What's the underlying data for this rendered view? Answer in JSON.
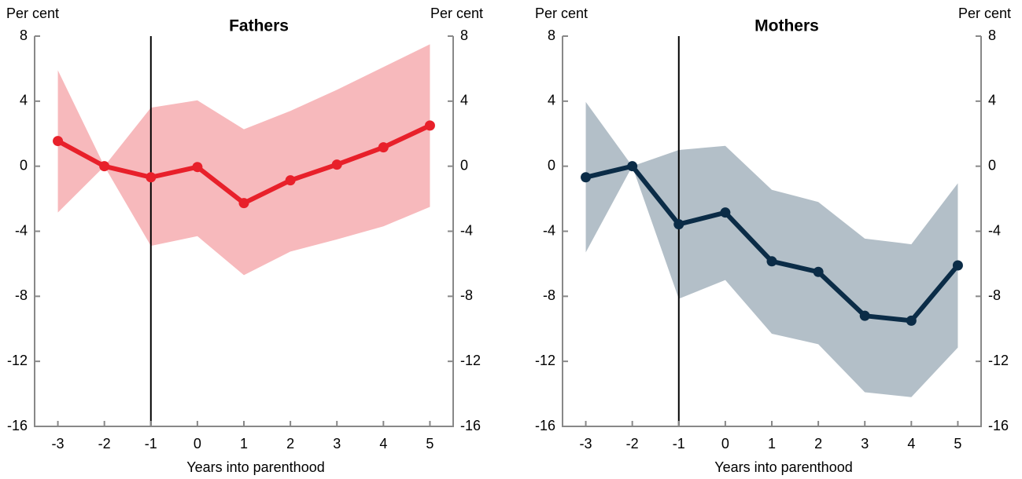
{
  "chart_data": [
    {
      "type": "line",
      "title": "Fathers",
      "ylabel": "Per cent",
      "y2label": "Per cent",
      "xlabel": "Years into parenthood",
      "x": [
        -3,
        -2,
        -1,
        0,
        1,
        2,
        3,
        4,
        5
      ],
      "xlim": [
        -3.5,
        5.5
      ],
      "vline": -1,
      "ylim": [
        -16,
        8
      ],
      "yticks": [
        -16,
        -12,
        -8,
        -4,
        0,
        4,
        8
      ],
      "y2lim": [
        -16,
        8
      ],
      "y2ticks": [
        -16,
        -12,
        -8,
        -4,
        0,
        4,
        8
      ],
      "series": [
        {
          "color": "#e8202a",
          "band_color": "#f7b9bc",
          "values": [
            1.55,
            0,
            -0.68,
            -0.05,
            -2.27,
            -0.87,
            0.1,
            1.16,
            2.5
          ],
          "upper": [
            5.9,
            0,
            3.6,
            4.05,
            2.27,
            3.4,
            4.7,
            6.1,
            7.5
          ],
          "lower": [
            -2.85,
            0,
            -4.9,
            -4.3,
            -6.7,
            -5.25,
            -4.5,
            -3.7,
            -2.5
          ]
        }
      ]
    },
    {
      "type": "line",
      "title": "Mothers",
      "ylabel": "Per cent",
      "y2label": "Per cent",
      "xlabel": "Years into parenthood",
      "x": [
        -3,
        -2,
        -1,
        0,
        1,
        2,
        3,
        4,
        5
      ],
      "xlim": [
        -3.5,
        5.5
      ],
      "vline": -1,
      "ylim": [
        -16,
        8
      ],
      "yticks": [
        -16,
        -12,
        -8,
        -4,
        0,
        4,
        8
      ],
      "y2lim": [
        -16,
        8
      ],
      "y2ticks": [
        -16,
        -12,
        -8,
        -4,
        0,
        4,
        8
      ],
      "series": [
        {
          "color": "#0b2c47",
          "band_color": "#b3bfc8",
          "values": [
            -0.68,
            0,
            -3.57,
            -2.85,
            -5.85,
            -6.5,
            -9.2,
            -9.5,
            -6.1
          ],
          "upper": [
            3.95,
            0,
            1.0,
            1.25,
            -1.45,
            -2.2,
            -4.45,
            -4.8,
            -1.05
          ],
          "lower": [
            -5.3,
            0,
            -8.15,
            -7.0,
            -10.3,
            -10.95,
            -13.9,
            -14.2,
            -11.15
          ]
        }
      ]
    }
  ]
}
